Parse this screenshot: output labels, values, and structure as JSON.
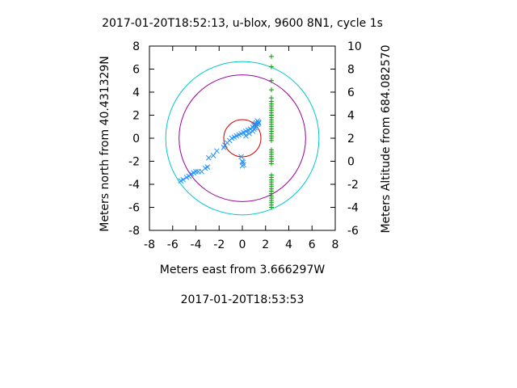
{
  "chart_data": {
    "type": "scatter",
    "title": "2017-01-20T18:52:13, u-blox, 9600 8N1, cycle 1s",
    "subtitle": "2017-01-20T18:53:53",
    "xlabel": "Meters east from 3.666297W",
    "ylabel": "Meters north from 40.431329N",
    "y2label": "Meters Altitude from 684.082570",
    "xlim": [
      -8,
      8
    ],
    "ylim": [
      -8,
      8
    ],
    "y2lim": [
      -6,
      10
    ],
    "xticks": [
      "-8",
      "-6",
      "-4",
      "-2",
      "0",
      "2",
      "4",
      "6",
      "8"
    ],
    "yticks": [
      "-8",
      "-6",
      "-4",
      "-2",
      "0",
      "2",
      "4",
      "6",
      "8"
    ],
    "y2ticks": [
      "-6",
      "-4",
      "-2",
      "0",
      "2",
      "4",
      "6",
      "8",
      "10"
    ],
    "grid": false,
    "legend": "none",
    "colors": {
      "position": "#1e90ff",
      "altitude": "#00a000",
      "circle_inner": "#cc0000",
      "circle_middle": "#990099",
      "circle_outer": "#00c8c8"
    },
    "circles": [
      {
        "radius": 1.6,
        "color": "#cc0000"
      },
      {
        "radius": 5.45,
        "color": "#990099"
      },
      {
        "radius": 6.6,
        "color": "#00c8c8"
      }
    ],
    "series": [
      {
        "marker": "x",
        "points": [
          [
            -5.3,
            -3.7
          ],
          [
            -5.1,
            -3.6
          ],
          [
            -4.8,
            -3.4
          ],
          [
            -4.6,
            -3.3
          ],
          [
            -4.4,
            -3.1
          ],
          [
            -4.2,
            -3.0
          ],
          [
            -4.0,
            -2.9
          ],
          [
            -3.8,
            -2.9
          ],
          [
            -3.5,
            -2.9
          ],
          [
            -3.2,
            -2.6
          ],
          [
            -3.0,
            -2.5
          ],
          [
            -2.9,
            -1.7
          ],
          [
            -2.5,
            -1.5
          ],
          [
            -2.2,
            -1.1
          ],
          [
            -1.6,
            -0.8
          ],
          [
            -1.5,
            -0.6
          ],
          [
            -1.3,
            -0.4
          ],
          [
            -1.1,
            -0.2
          ],
          [
            -0.9,
            0.0
          ],
          [
            -0.7,
            0.1
          ],
          [
            -0.5,
            0.2
          ],
          [
            -0.3,
            0.3
          ],
          [
            -0.1,
            0.4
          ],
          [
            0.1,
            0.5
          ],
          [
            0.3,
            0.6
          ],
          [
            0.5,
            0.7
          ],
          [
            0.7,
            0.8
          ],
          [
            0.9,
            0.95
          ],
          [
            1.0,
            1.1
          ],
          [
            1.1,
            1.25
          ],
          [
            1.2,
            1.35
          ],
          [
            1.3,
            1.5
          ],
          [
            1.4,
            1.4
          ],
          [
            1.2,
            1.0
          ],
          [
            1.0,
            0.8
          ],
          [
            1.3,
            1.2
          ],
          [
            0.6,
            0.4
          ],
          [
            0.3,
            0.2
          ],
          [
            0.9,
            0.6
          ],
          [
            1.4,
            1.3
          ],
          [
            1.1,
            0.9
          ],
          [
            -0.1,
            -1.6
          ],
          [
            0.0,
            -2.0
          ],
          [
            0.1,
            -2.3
          ],
          [
            0.05,
            -2.1
          ],
          [
            0.0,
            -2.4
          ]
        ]
      },
      {
        "marker": "+",
        "points": [
          [
            2.5,
            9.1
          ],
          [
            2.5,
            8.2
          ],
          [
            2.5,
            7.0
          ],
          [
            2.5,
            6.2
          ],
          [
            2.5,
            5.5
          ],
          [
            2.5,
            5.2
          ],
          [
            2.5,
            5.0
          ],
          [
            2.5,
            4.8
          ],
          [
            2.5,
            4.6
          ],
          [
            2.5,
            4.4
          ],
          [
            2.5,
            4.2
          ],
          [
            2.5,
            4.0
          ],
          [
            2.5,
            3.8
          ],
          [
            2.5,
            3.6
          ],
          [
            2.5,
            3.4
          ],
          [
            2.5,
            3.2
          ],
          [
            2.5,
            3.0
          ],
          [
            2.5,
            2.8
          ],
          [
            2.5,
            2.6
          ],
          [
            2.5,
            2.4
          ],
          [
            2.5,
            2.2
          ],
          [
            2.5,
            2.0
          ],
          [
            2.5,
            1.8
          ],
          [
            2.5,
            1.0
          ],
          [
            2.5,
            0.8
          ],
          [
            2.5,
            0.6
          ],
          [
            2.5,
            0.4
          ],
          [
            2.5,
            0.2
          ],
          [
            2.5,
            0.0
          ],
          [
            2.5,
            -0.2
          ],
          [
            2.5,
            -1.2
          ],
          [
            2.5,
            -1.4
          ],
          [
            2.5,
            -1.6
          ],
          [
            2.5,
            -1.8
          ],
          [
            2.5,
            -2.0
          ],
          [
            2.5,
            -2.2
          ],
          [
            2.5,
            -2.4
          ],
          [
            2.5,
            -2.6
          ],
          [
            2.5,
            -2.8
          ],
          [
            2.5,
            -3.0
          ],
          [
            2.5,
            -3.2
          ],
          [
            2.5,
            -3.4
          ],
          [
            2.5,
            -3.6
          ],
          [
            2.5,
            -3.8
          ],
          [
            2.5,
            -4.0
          ]
        ]
      }
    ]
  }
}
